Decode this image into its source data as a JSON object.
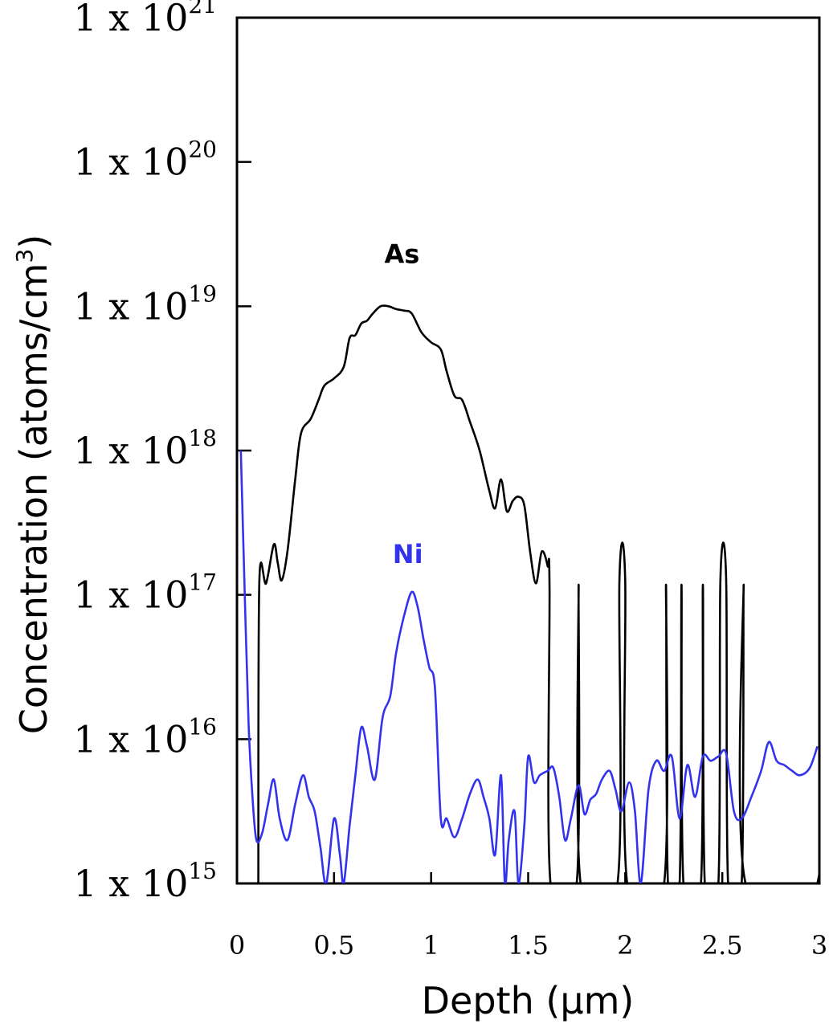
{
  "chart_data": {
    "type": "line",
    "xlabel": "Depth (μm)",
    "ylabel": "Concentration (atoms/cm",
    "ylabel_sup": "3",
    "ylabel_close": ")",
    "xlim": [
      0,
      3
    ],
    "ylim_log10": [
      15,
      21
    ],
    "y_scale": "log",
    "grid": false,
    "x_ticks": [
      {
        "value": 0,
        "label": "0"
      },
      {
        "value": 0.5,
        "label": "0.5"
      },
      {
        "value": 1,
        "label": "1"
      },
      {
        "value": 1.5,
        "label": "1.5"
      },
      {
        "value": 2,
        "label": "2"
      },
      {
        "value": 2.5,
        "label": "2.5"
      },
      {
        "value": 3,
        "label": "3"
      }
    ],
    "y_ticks": [
      {
        "exp": 15,
        "base": "1 x 10",
        "sup": "15"
      },
      {
        "exp": 16,
        "base": "1 x 10",
        "sup": "16"
      },
      {
        "exp": 17,
        "base": "1 x 10",
        "sup": "17"
      },
      {
        "exp": 18,
        "base": "1 x 10",
        "sup": "18"
      },
      {
        "exp": 19,
        "base": "1 x 10",
        "sup": "19"
      },
      {
        "exp": 20,
        "base": "1 x 10",
        "sup": "20"
      },
      {
        "exp": 21,
        "base": "1 x 10",
        "sup": "21"
      }
    ],
    "series": [
      {
        "name": "As",
        "color": "#000000",
        "label_at": [
          0.85,
          19.3
        ],
        "points": [
          [
            0.11,
            15.0
          ],
          [
            0.115,
            17.08
          ],
          [
            0.15,
            17.08
          ],
          [
            0.19,
            17.35
          ],
          [
            0.21,
            17.22
          ],
          [
            0.23,
            17.1
          ],
          [
            0.26,
            17.3
          ],
          [
            0.3,
            17.8
          ],
          [
            0.33,
            18.12
          ],
          [
            0.38,
            18.22
          ],
          [
            0.42,
            18.35
          ],
          [
            0.45,
            18.45
          ],
          [
            0.5,
            18.5
          ],
          [
            0.55,
            18.58
          ],
          [
            0.58,
            18.78
          ],
          [
            0.61,
            18.8
          ],
          [
            0.64,
            18.88
          ],
          [
            0.67,
            18.9
          ],
          [
            0.7,
            18.95
          ],
          [
            0.74,
            19.0
          ],
          [
            0.78,
            19.0
          ],
          [
            0.82,
            18.98
          ],
          [
            0.86,
            18.97
          ],
          [
            0.9,
            18.95
          ],
          [
            0.95,
            18.82
          ],
          [
            1.0,
            18.75
          ],
          [
            1.05,
            18.7
          ],
          [
            1.08,
            18.55
          ],
          [
            1.12,
            18.38
          ],
          [
            1.16,
            18.35
          ],
          [
            1.2,
            18.2
          ],
          [
            1.25,
            18.0
          ],
          [
            1.3,
            17.72
          ],
          [
            1.33,
            17.6
          ],
          [
            1.36,
            17.8
          ],
          [
            1.39,
            17.58
          ],
          [
            1.42,
            17.65
          ],
          [
            1.45,
            17.68
          ],
          [
            1.48,
            17.62
          ],
          [
            1.51,
            17.3
          ],
          [
            1.54,
            17.08
          ],
          [
            1.57,
            17.3
          ],
          [
            1.6,
            17.2
          ],
          [
            1.61,
            17.05
          ],
          [
            1.615,
            15.0
          ],
          [
            1.75,
            15.0
          ],
          [
            1.76,
            17.07
          ],
          [
            1.77,
            15.0
          ],
          [
            1.96,
            15.0
          ],
          [
            1.97,
            17.1
          ],
          [
            2.0,
            17.1
          ],
          [
            2.01,
            15.0
          ],
          [
            2.2,
            15.0
          ],
          [
            2.21,
            17.07
          ],
          [
            2.22,
            15.0
          ],
          [
            2.28,
            15.0
          ],
          [
            2.29,
            17.07
          ],
          [
            2.3,
            15.0
          ],
          [
            2.39,
            15.0
          ],
          [
            2.4,
            17.07
          ],
          [
            2.41,
            15.0
          ],
          [
            2.48,
            15.0
          ],
          [
            2.49,
            17.1
          ],
          [
            2.52,
            17.1
          ],
          [
            2.53,
            15.0
          ],
          [
            2.6,
            15.0
          ],
          [
            2.61,
            17.07
          ],
          [
            2.62,
            15.0
          ],
          [
            2.99,
            15.0
          ],
          [
            3.0,
            17.07
          ]
        ]
      },
      {
        "name": "Ni",
        "color": "#3333ee",
        "label_at": [
          0.88,
          17.22
        ],
        "points": [
          [
            0.02,
            18.0
          ],
          [
            0.04,
            17.0
          ],
          [
            0.06,
            16.1
          ],
          [
            0.08,
            15.6
          ],
          [
            0.1,
            15.3
          ],
          [
            0.13,
            15.35
          ],
          [
            0.16,
            15.55
          ],
          [
            0.19,
            15.72
          ],
          [
            0.22,
            15.45
          ],
          [
            0.26,
            15.3
          ],
          [
            0.3,
            15.55
          ],
          [
            0.34,
            15.75
          ],
          [
            0.37,
            15.6
          ],
          [
            0.4,
            15.5
          ],
          [
            0.43,
            15.25
          ],
          [
            0.46,
            15.0
          ],
          [
            0.5,
            15.45
          ],
          [
            0.53,
            15.2
          ],
          [
            0.55,
            15.0
          ],
          [
            0.58,
            15.4
          ],
          [
            0.61,
            15.75
          ],
          [
            0.64,
            16.08
          ],
          [
            0.67,
            15.95
          ],
          [
            0.71,
            15.72
          ],
          [
            0.75,
            16.15
          ],
          [
            0.79,
            16.3
          ],
          [
            0.82,
            16.6
          ],
          [
            0.86,
            16.85
          ],
          [
            0.9,
            17.02
          ],
          [
            0.93,
            16.92
          ],
          [
            0.96,
            16.7
          ],
          [
            0.99,
            16.5
          ],
          [
            1.02,
            16.35
          ],
          [
            1.05,
            15.45
          ],
          [
            1.08,
            15.45
          ],
          [
            1.12,
            15.32
          ],
          [
            1.16,
            15.45
          ],
          [
            1.2,
            15.62
          ],
          [
            1.24,
            15.72
          ],
          [
            1.27,
            15.6
          ],
          [
            1.3,
            15.45
          ],
          [
            1.33,
            15.2
          ],
          [
            1.36,
            15.75
          ],
          [
            1.38,
            15.0
          ],
          [
            1.4,
            15.3
          ],
          [
            1.43,
            15.5
          ],
          [
            1.45,
            15.0
          ],
          [
            1.48,
            15.4
          ],
          [
            1.5,
            15.88
          ],
          [
            1.53,
            15.7
          ],
          [
            1.56,
            15.75
          ],
          [
            1.6,
            15.78
          ],
          [
            1.63,
            15.8
          ],
          [
            1.66,
            15.6
          ],
          [
            1.69,
            15.3
          ],
          [
            1.72,
            15.45
          ],
          [
            1.76,
            15.68
          ],
          [
            1.79,
            15.48
          ],
          [
            1.82,
            15.58
          ],
          [
            1.85,
            15.62
          ],
          [
            1.88,
            15.72
          ],
          [
            1.92,
            15.78
          ],
          [
            1.95,
            15.65
          ],
          [
            1.98,
            15.5
          ],
          [
            2.02,
            15.7
          ],
          [
            2.05,
            15.5
          ],
          [
            2.08,
            15.0
          ],
          [
            2.12,
            15.65
          ],
          [
            2.16,
            15.85
          ],
          [
            2.2,
            15.78
          ],
          [
            2.24,
            15.88
          ],
          [
            2.28,
            15.45
          ],
          [
            2.32,
            15.82
          ],
          [
            2.36,
            15.6
          ],
          [
            2.4,
            15.88
          ],
          [
            2.44,
            15.85
          ],
          [
            2.48,
            15.88
          ],
          [
            2.52,
            15.9
          ],
          [
            2.56,
            15.5
          ],
          [
            2.6,
            15.45
          ],
          [
            2.65,
            15.6
          ],
          [
            2.7,
            15.78
          ],
          [
            2.74,
            15.98
          ],
          [
            2.78,
            15.85
          ],
          [
            2.82,
            15.82
          ],
          [
            2.86,
            15.78
          ],
          [
            2.9,
            15.75
          ],
          [
            2.95,
            15.8
          ],
          [
            2.99,
            15.95
          ]
        ]
      }
    ]
  }
}
